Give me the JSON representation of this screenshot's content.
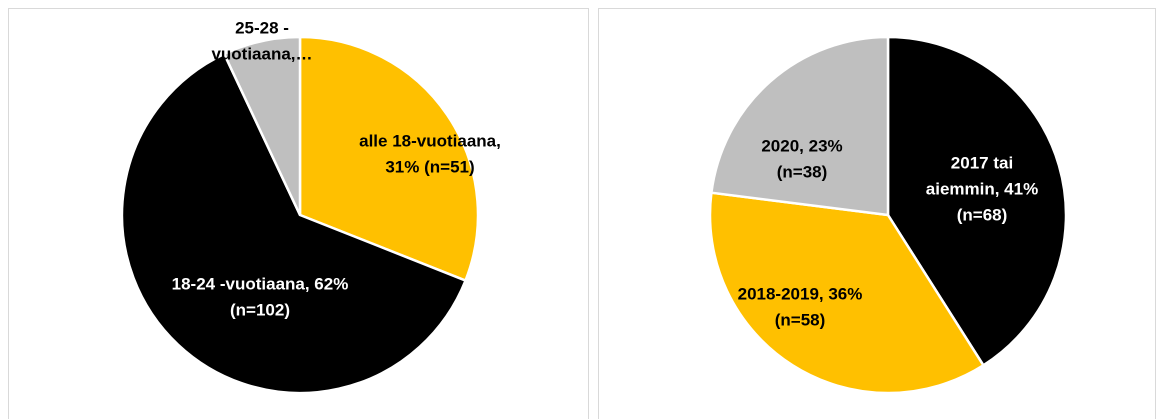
{
  "chart_data": [
    {
      "type": "pie",
      "values": [
        31,
        62,
        7
      ],
      "value_labels": [
        [
          "alle 18-vuotiaana,",
          "31% (n=51)"
        ],
        [
          "18-24 -vuotiaana, 62%",
          "(n=102)"
        ],
        [
          "25-28 -",
          "vuotiaana,…"
        ]
      ],
      "colors": [
        "#FFC000",
        "#000000",
        "#BFBFBF"
      ]
    },
    {
      "type": "pie",
      "values": [
        41,
        36,
        23
      ],
      "value_labels": [
        [
          "2017 tai",
          "aiemmin, 41%",
          "(n=68)"
        ],
        [
          "2018-2019, 36%",
          "(n=58)"
        ],
        [
          "2020, 23%",
          "(n=38)"
        ]
      ],
      "colors": [
        "#000000",
        "#FFC000",
        "#BFBFBF"
      ]
    }
  ]
}
